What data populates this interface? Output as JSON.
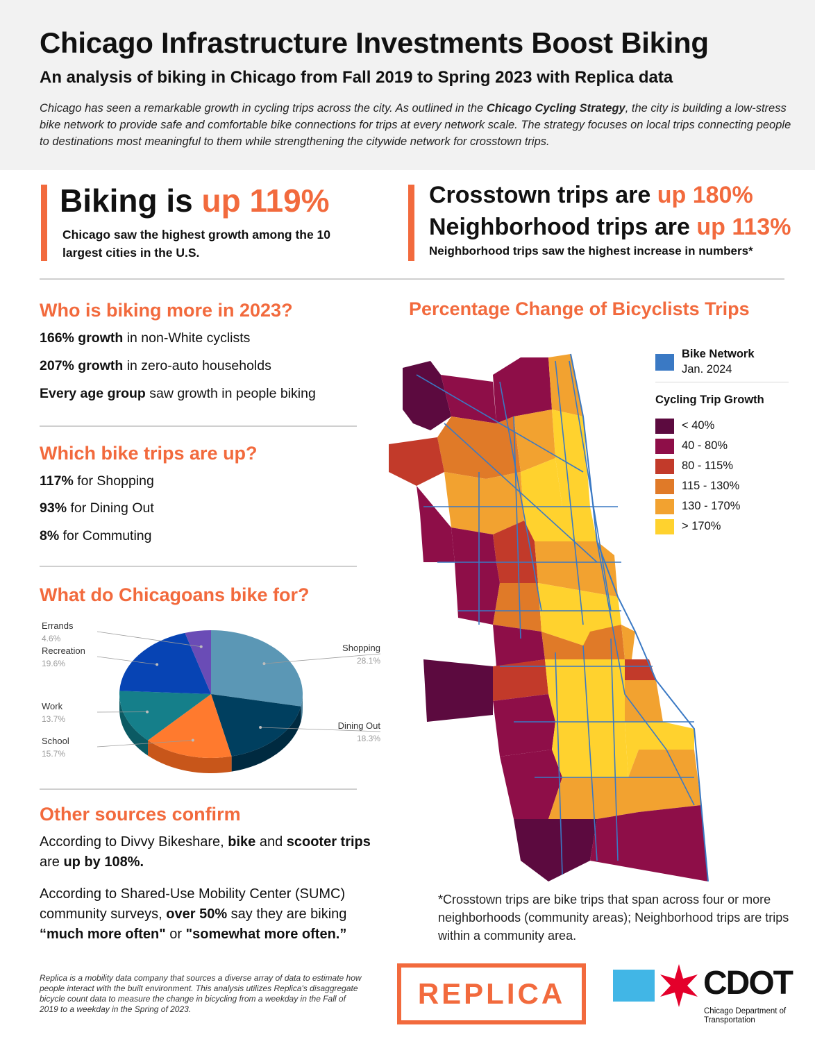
{
  "header": {
    "title": "Chicago Infrastructure Investments Boost Biking",
    "subtitle": "An analysis of biking in Chicago from Fall 2019 to Spring 2023 with Replica data",
    "intro_a": "Chicago has seen a remarkable growth in cycling trips across the city. As outlined in the ",
    "intro_strategy": "Chicago Cycling Strategy",
    "intro_b": ", the city is building a low-stress bike network to provide safe and comfortable bike connections for trips at every network scale. The strategy focuses on local trips connecting people to destinations most meaningful to them while strengthening the citywide network for crosstown trips."
  },
  "highlights": {
    "biking_lead": "Biking is ",
    "biking_value": "up 119%",
    "biking_sub": "Chicago saw the highest growth among the 10 largest cities in the U.S.",
    "crosstown_lead": "Crosstown trips are ",
    "crosstown_value": "up 180%",
    "neighborhood_lead": "Neighborhood trips are ",
    "neighborhood_value": "up 113%",
    "neighborhood_sub": "Neighborhood trips saw the highest increase in numbers*"
  },
  "who": {
    "title": "Who is biking more in 2023?",
    "s1_bold": "166% growth",
    "s1_rest": " in non-White cyclists",
    "s2_bold": "207% growth",
    "s2_rest": " in zero-auto households",
    "s3_bold": "Every age group",
    "s3_rest": " saw growth in people biking"
  },
  "which": {
    "title": "Which bike trips are up?",
    "s1_bold": "117%",
    "s1_rest": " for Shopping",
    "s2_bold": "93%",
    "s2_rest": " for Dining Out",
    "s3_bold": "8%",
    "s3_rest": " for Commuting"
  },
  "purpose": {
    "title": "What do Chicagoans bike for?"
  },
  "chart_data": {
    "type": "pie",
    "categories": [
      "Shopping",
      "Dining Out",
      "School",
      "Work",
      "Recreation",
      "Errands"
    ],
    "values": [
      28.1,
      18.3,
      15.7,
      13.7,
      19.6,
      4.6
    ],
    "value_labels": [
      "28.1%",
      "18.3%",
      "15.7%",
      "13.7%",
      "19.6%",
      "4.6%"
    ],
    "colors": [
      "#5b97b5",
      "#003f5f",
      "#ff7a2e",
      "#157f8a",
      "#0744b4",
      "#6a4cb6"
    ],
    "side_colors": [
      "#4c8099",
      "#002a40",
      "#c8561a",
      "#0b5a63",
      "#042f80",
      "#4c3486"
    ]
  },
  "other": {
    "title": "Other sources confirm",
    "p1_a": "According to Divvy Bikeshare, ",
    "p1_b": "bike",
    "p1_c": " and ",
    "p1_d": "scooter trips",
    "p1_e": " are ",
    "p1_f": "up by 108%.",
    "p2_a": "According to Shared-Use Mobility Center (SUMC) community surveys, ",
    "p2_b": "over 50%",
    "p2_c": " say they are biking ",
    "p2_d": "“much more often\"",
    "p2_e": " or ",
    "p2_f": "\"somewhat more often.”"
  },
  "map": {
    "title": "Percentage Change of Bicyclists Trips",
    "network_label": "Bike Network",
    "network_date": "Jan. 2024",
    "network_color": "#3a79c4",
    "legend_title": "Cycling Trip Growth",
    "legend": [
      {
        "label": "< 40%",
        "color": "#5c0a3f"
      },
      {
        "label": "40 - 80%",
        "color": "#8e0e48"
      },
      {
        "label": "80 - 115%",
        "color": "#c23a2a"
      },
      {
        "label": "115 - 130%",
        "color": "#e07a28"
      },
      {
        "label": "130 - 170%",
        "color": "#f2a230"
      },
      {
        "label": "> 170%",
        "color": "#ffd22e"
      }
    ]
  },
  "footnote": "*Crosstown trips are bike trips that span across four or more neighborhoods (community areas); Neighborhood trips are trips within a community area.",
  "disclaimer": "Replica is a mobility data company that sources a diverse array of data to estimate how people interact with the built environment. This analysis utilizes Replica's disaggregate bicycle count data to measure the change in bicycling from a weekday in the Fall of 2019 to a weekday in the Spring of 2023.",
  "logos": {
    "replica": "REPLICA",
    "cdot": "CDOT",
    "cdot_sub": "Chicago Department of Transportation"
  }
}
